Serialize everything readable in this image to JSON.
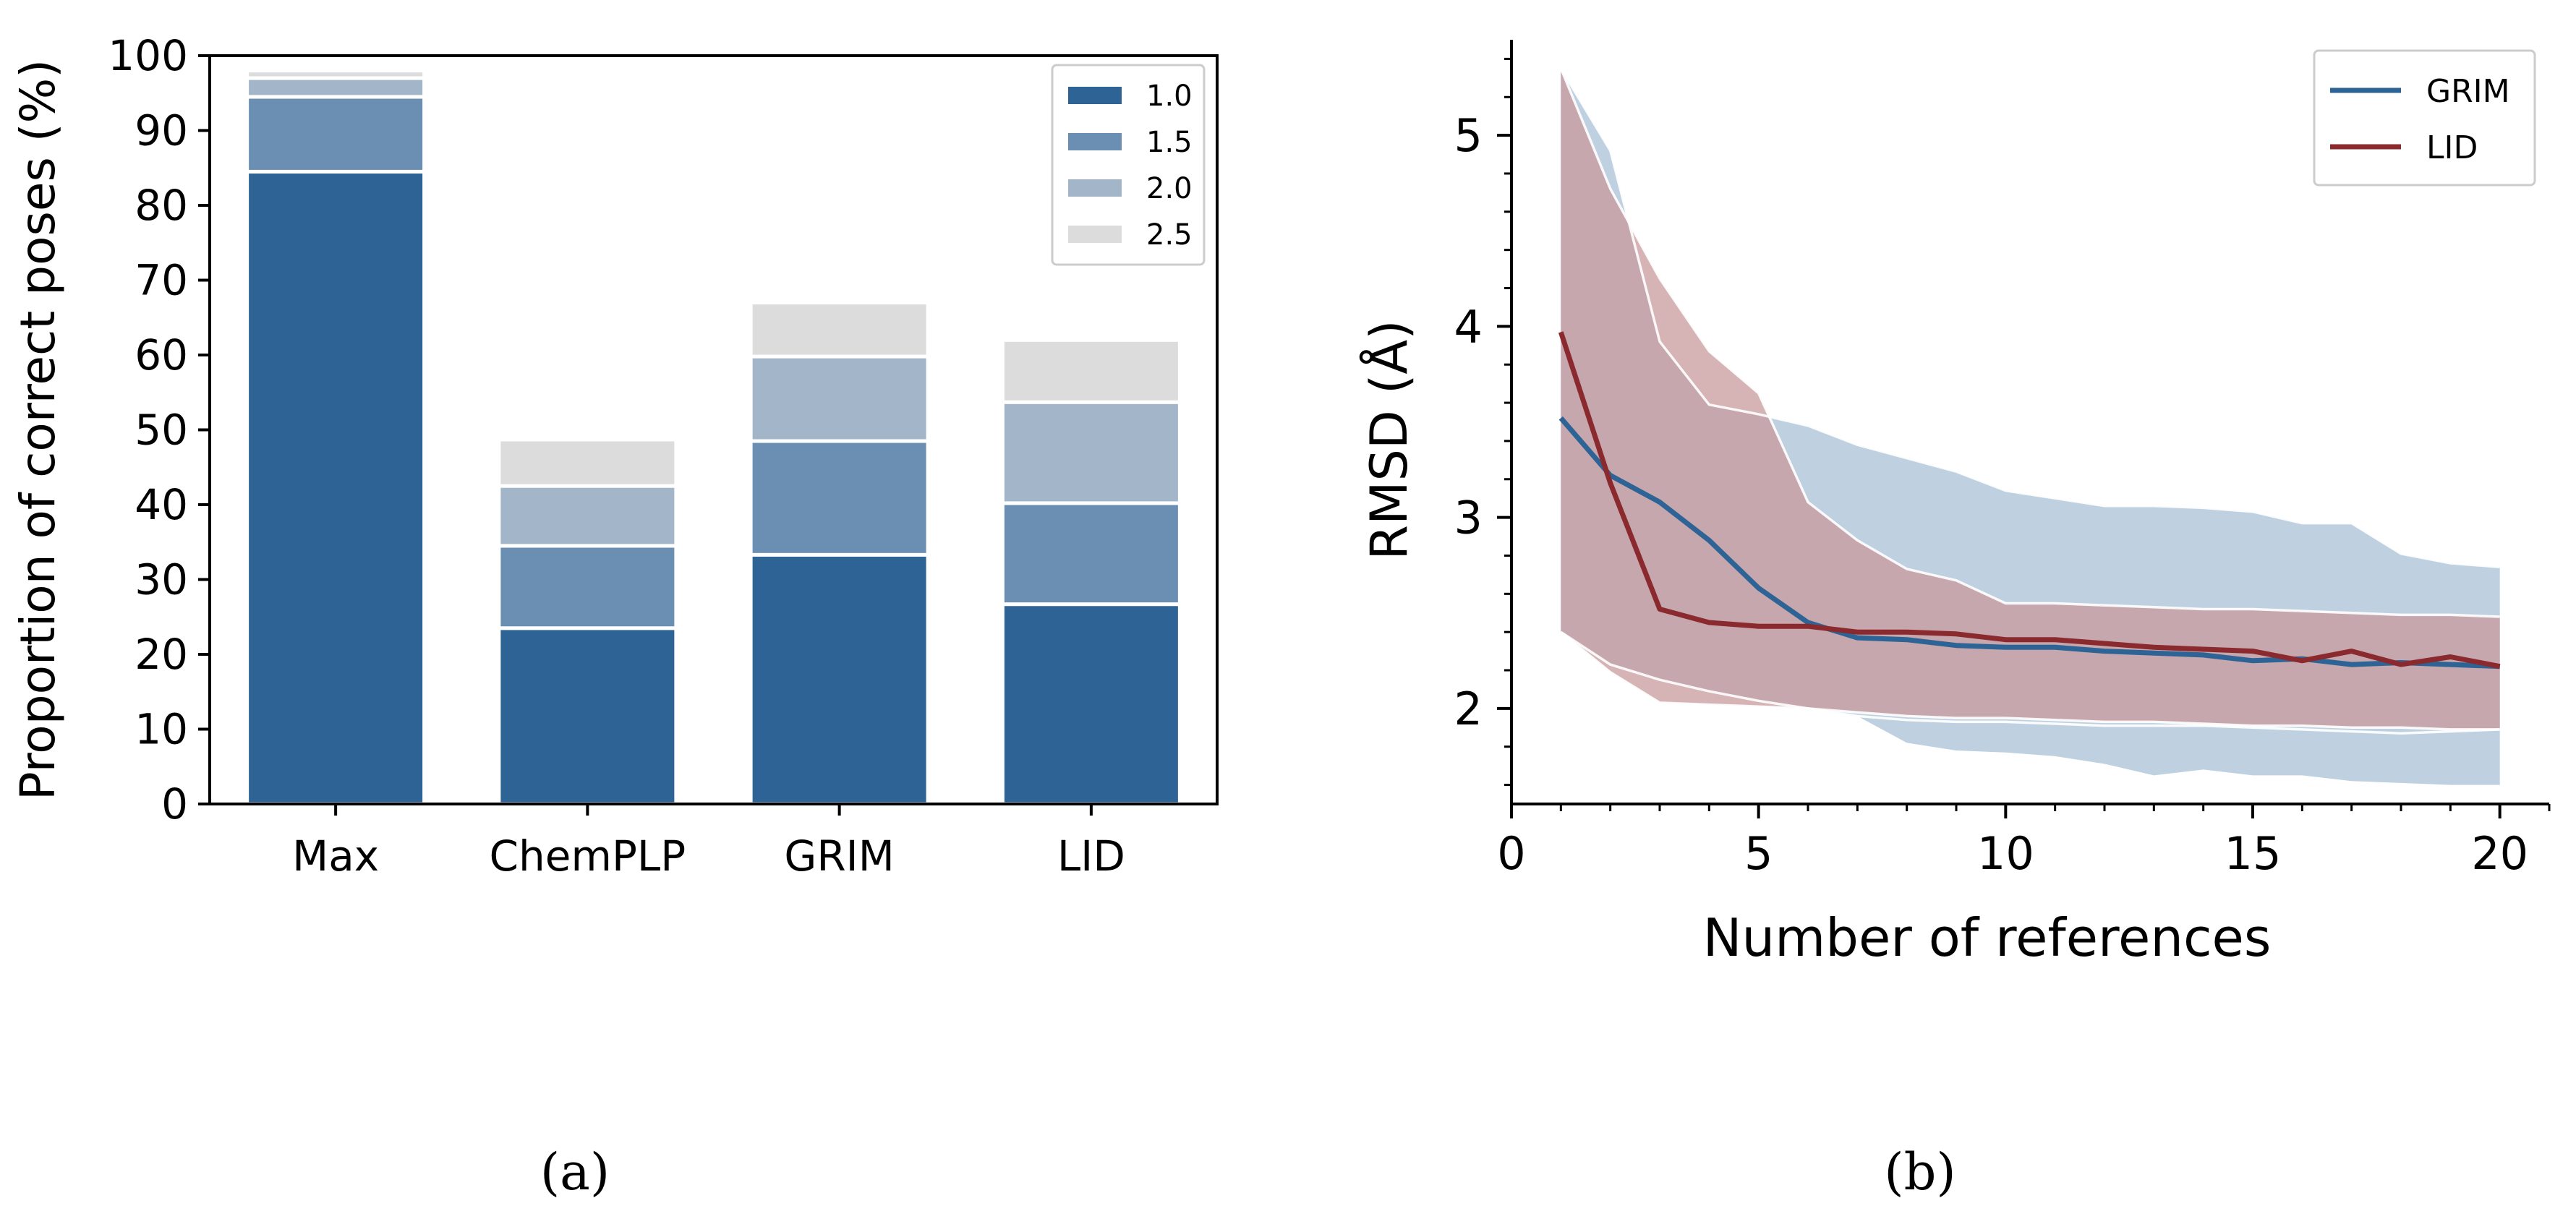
{
  "chart_data": [
    {
      "type": "bar",
      "stacked": true,
      "categories": [
        "Max",
        "ChemPLP",
        "GRIM",
        "LID"
      ],
      "ylabel": "Proportion of correct poses (%)",
      "xlabel": "",
      "ylim": [
        0,
        100
      ],
      "yticks": [
        0,
        10,
        20,
        30,
        40,
        50,
        60,
        70,
        80,
        90,
        100
      ],
      "legend_position": "top-right",
      "series": [
        {
          "name": "1.0",
          "color": "#2e6395",
          "values": [
            84.5,
            23.5,
            33.3,
            26.7
          ]
        },
        {
          "name": "1.5",
          "color": "#6a8fb3",
          "values": [
            10.0,
            11.0,
            15.2,
            13.5
          ]
        },
        {
          "name": "2.0",
          "color": "#a3b5c9",
          "values": [
            2.5,
            8.0,
            11.3,
            13.5
          ]
        },
        {
          "name": "2.5",
          "color": "#dcdcdc",
          "values": [
            1.0,
            6.2,
            7.2,
            8.3
          ]
        }
      ],
      "caption": "(a)"
    },
    {
      "type": "line",
      "xlabel": "Number of references",
      "ylabel": "RMSD (Å)",
      "xlim": [
        0,
        21
      ],
      "ylim": [
        1.5,
        5.5
      ],
      "xticks": [
        0,
        5,
        10,
        15,
        20
      ],
      "yticks": [
        2,
        3,
        4,
        5
      ],
      "legend_position": "top-right",
      "x": [
        1,
        2,
        3,
        4,
        5,
        6,
        7,
        8,
        9,
        10,
        11,
        12,
        13,
        14,
        15,
        16,
        17,
        18,
        19,
        20
      ],
      "series": [
        {
          "name": "GRIM",
          "color": "#2e6395",
          "band_color": "#a9c0d6",
          "values": [
            3.52,
            3.22,
            3.08,
            2.88,
            2.63,
            2.45,
            2.37,
            2.36,
            2.33,
            2.32,
            2.32,
            2.3,
            2.29,
            2.28,
            2.25,
            2.26,
            2.23,
            2.24,
            2.23,
            2.22
          ],
          "upper": [
            5.35,
            4.92,
            3.92,
            3.59,
            3.54,
            3.48,
            3.38,
            3.31,
            3.24,
            3.14,
            3.1,
            3.06,
            3.06,
            3.05,
            3.03,
            2.97,
            2.97,
            2.81,
            2.76,
            2.74
          ],
          "lower": [
            2.4,
            2.23,
            2.15,
            2.09,
            2.04,
            2.0,
            1.96,
            1.94,
            1.93,
            1.93,
            1.92,
            1.91,
            1.91,
            1.91,
            1.9,
            1.89,
            1.88,
            1.87,
            1.88,
            1.89
          ],
          "lower_min": [
            2.4,
            2.23,
            2.15,
            2.09,
            2.04,
            2.0,
            1.96,
            1.82,
            1.78,
            1.77,
            1.75,
            1.71,
            1.65,
            1.68,
            1.65,
            1.65,
            1.62,
            1.61,
            1.6,
            1.6
          ]
        },
        {
          "name": "LID",
          "color": "#8b2a2e",
          "band_color": "#c89a9c",
          "values": [
            3.97,
            3.18,
            2.52,
            2.45,
            2.43,
            2.43,
            2.4,
            2.4,
            2.39,
            2.36,
            2.36,
            2.34,
            2.32,
            2.31,
            2.3,
            2.25,
            2.3,
            2.23,
            2.27,
            2.22
          ],
          "upper": [
            5.35,
            4.72,
            4.25,
            3.87,
            3.65,
            3.08,
            2.88,
            2.73,
            2.67,
            2.55,
            2.55,
            2.54,
            2.53,
            2.52,
            2.52,
            2.51,
            2.5,
            2.49,
            2.49,
            2.48
          ],
          "lower": [
            2.4,
            2.19,
            2.03,
            2.02,
            2.01,
            2.0,
            1.98,
            1.96,
            1.95,
            1.95,
            1.94,
            1.93,
            1.93,
            1.92,
            1.91,
            1.91,
            1.9,
            1.9,
            1.89,
            1.89
          ]
        }
      ],
      "caption": "(b)"
    }
  ]
}
